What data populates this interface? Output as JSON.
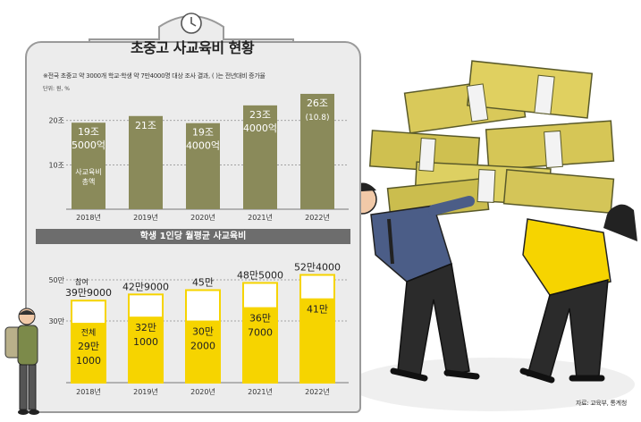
{
  "chart_data": [
    {
      "type": "bar",
      "title": "초중고 사교육비 현황",
      "note": "※전국 초중고 약 3000개 학교·학생 약 7만4000명 대상 조사 결과, ( )는 전년대비 증가율",
      "unit": "단위: 원, %",
      "categories": [
        "2018년",
        "2019년",
        "2020년",
        "2021년",
        "2022년"
      ],
      "values": [
        19.5,
        21,
        19.4,
        23.4,
        26
      ],
      "value_labels": [
        "19조 5000억",
        "21조",
        "19조 4000억",
        "23조 4000억",
        "26조"
      ],
      "change_label": "(10.8)",
      "series_label": "사교육비 총액",
      "y_ticks": [
        {
          "value": 10,
          "label": "10조"
        },
        {
          "value": 20,
          "label": "20조"
        }
      ],
      "ylim": [
        0,
        27
      ],
      "bar_color": "#8a8a5a"
    },
    {
      "type": "bar",
      "title": "학생 1인당 월평균 사교육비",
      "categories": [
        "2018년",
        "2019년",
        "2020년",
        "2021년",
        "2022년"
      ],
      "series": [
        {
          "name": "참여",
          "values": [
            39.9,
            42.9,
            45,
            48.5,
            52.4
          ],
          "labels": [
            "39만9000",
            "42만9000",
            "45만",
            "48만5000",
            "52만4000"
          ]
        },
        {
          "name": "전체",
          "values": [
            29.1,
            32.1,
            30.2,
            36.7,
            41
          ],
          "labels": [
            "29만 1000",
            "32만 1000",
            "30만 2000",
            "36만 7000",
            "41만"
          ]
        }
      ],
      "y_ticks": [
        {
          "value": 30,
          "label": "30만"
        },
        {
          "value": 50,
          "label": "50만"
        }
      ],
      "ylim": [
        0,
        55
      ],
      "participating_color": "#ffffff",
      "overall_color": "#f6d400"
    }
  ],
  "source": "자료: 교육부, 통계청"
}
